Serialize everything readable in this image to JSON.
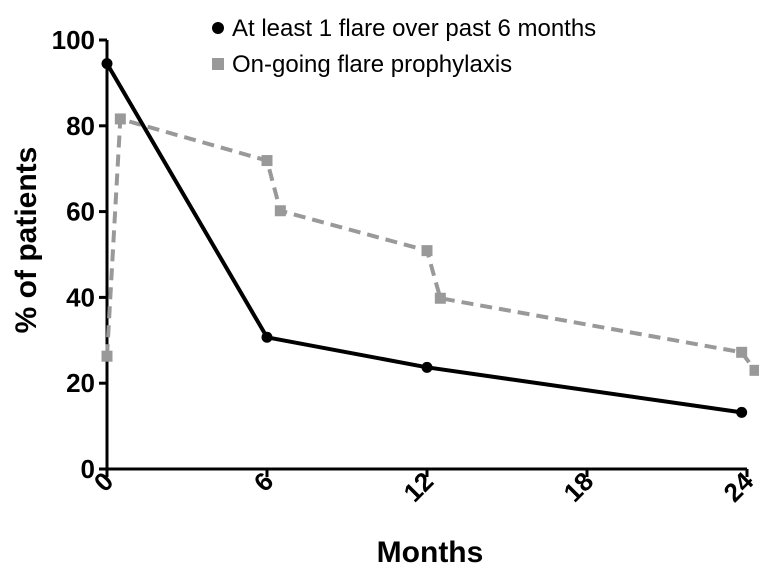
{
  "chart_data": {
    "type": "line",
    "title": "",
    "xlabel": "Months",
    "ylabel": "% of patients",
    "xlim": [
      0,
      24
    ],
    "ylim": [
      0,
      100
    ],
    "xticks": [
      0,
      6,
      12,
      18,
      24
    ],
    "yticks": [
      0,
      20,
      40,
      60,
      80,
      100
    ],
    "grid": false,
    "legend_position": "top-right",
    "series": [
      {
        "name": "At least 1 flare over past 6 months",
        "color": "#000000",
        "marker": "circle",
        "line_style": "solid",
        "x": [
          0,
          6,
          12,
          23.8
        ],
        "y": [
          94.5,
          30.7,
          23.7,
          13.2
        ]
      },
      {
        "name": "On-going flare prophylaxis",
        "color": "#999999",
        "marker": "square",
        "line_style": "dashed",
        "x": [
          0,
          0.5,
          6,
          6.5,
          12,
          12.5,
          23.8,
          24.3
        ],
        "y": [
          26.3,
          81.6,
          71.9,
          60.2,
          50.9,
          39.8,
          27.2,
          23.0
        ]
      }
    ]
  }
}
